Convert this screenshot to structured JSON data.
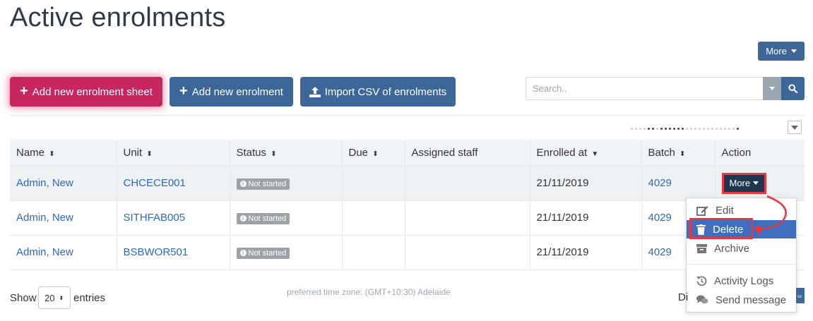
{
  "page": {
    "title": "Active enrolments"
  },
  "toolbar": {
    "more_label": "More",
    "add_sheet_label": "Add new enrolment sheet",
    "add_enrolment_label": "Add new enrolment",
    "import_label": "Import CSV of enrolments"
  },
  "search": {
    "placeholder": "Search.."
  },
  "table": {
    "columns": [
      "Name",
      "Unit",
      "Status",
      "Due",
      "Assigned staff",
      "Enrolled at",
      "Batch",
      "Action"
    ],
    "rows": [
      {
        "name": "Admin, New",
        "unit": "CHCECE001",
        "status": "Not started",
        "due": "",
        "staff": "",
        "enrolled_at": "21/11/2019",
        "batch": "4029",
        "action": "More"
      },
      {
        "name": "Admin, New",
        "unit": "SITHFAB005",
        "status": "Not started",
        "due": "",
        "staff": "",
        "enrolled_at": "21/11/2019",
        "batch": "4029",
        "action": ""
      },
      {
        "name": "Admin, New",
        "unit": "BSBWOR501",
        "status": "Not started",
        "due": "",
        "staff": "",
        "enrolled_at": "21/11/2019",
        "batch": "4029",
        "action": ""
      }
    ]
  },
  "action_menu": {
    "items": [
      {
        "label": "Edit",
        "icon": "edit-icon"
      },
      {
        "label": "Delete",
        "icon": "trash-icon",
        "highlighted": true
      },
      {
        "label": "Archive",
        "icon": "archive-icon"
      },
      {
        "label": "Activity Logs",
        "icon": "history-icon"
      },
      {
        "label": "Send message",
        "icon": "comments-icon"
      }
    ]
  },
  "footer": {
    "show_label": "Show",
    "page_length": "20",
    "entries_label": "entries",
    "timezone_note": "preferred time zone: (GMT+10:30) Adelaide",
    "display_label_partial": "Di"
  },
  "colors": {
    "primary": "#3e6799",
    "accent": "#c8265f",
    "link": "#2d69b8",
    "highlight": "#e8373f"
  }
}
